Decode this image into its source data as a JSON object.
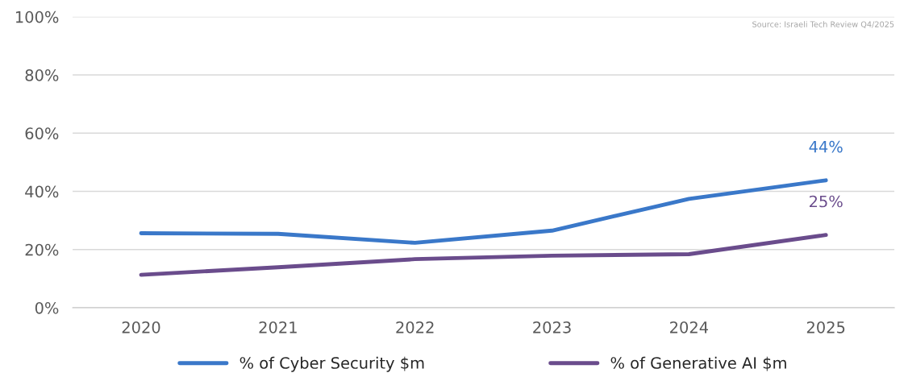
{
  "chart_data": {
    "type": "line",
    "categories": [
      "2020",
      "2021",
      "2022",
      "2023",
      "2024",
      "2025"
    ],
    "series": [
      {
        "name": "% of Cyber Security $m",
        "color": "#3a78c9",
        "values": [
          25.6,
          25.4,
          22.3,
          26.5,
          37.4,
          43.8
        ],
        "value_labels": [
          null,
          null,
          null,
          null,
          null,
          "44%"
        ]
      },
      {
        "name": "% of Generative AI $m",
        "color": "#6a4c8c",
        "values": [
          11.3,
          13.9,
          16.7,
          17.9,
          18.4,
          25
        ],
        "value_labels": [
          null,
          null,
          null,
          null,
          null,
          "25%"
        ]
      }
    ],
    "ylim": [
      0,
      100
    ],
    "yticks": [
      {
        "value": 0,
        "label": "0%"
      },
      {
        "value": 20,
        "label": "20%"
      },
      {
        "value": 40,
        "label": "40%"
      },
      {
        "value": 60,
        "label": "60%"
      },
      {
        "value": 80,
        "label": "80%"
      },
      {
        "value": 100,
        "label": "100%"
      }
    ],
    "grid": "y",
    "legend": "bottom",
    "marker": "none",
    "line_style": "solid",
    "annotations": [
      "Source: Israeli Tech Review Q4/2025"
    ]
  }
}
